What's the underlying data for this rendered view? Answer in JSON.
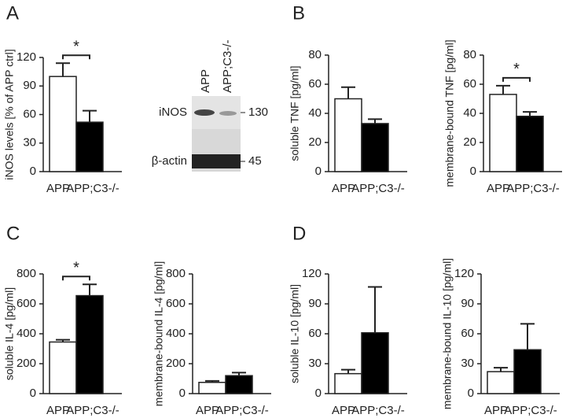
{
  "chart_data": [
    {
      "type": "bar",
      "panel": "A",
      "ylabel": "iNOS levels [% of APP ctrl]",
      "categories": [
        "APP",
        "APP;C3-/-"
      ],
      "values": [
        100,
        52
      ],
      "errors": [
        14,
        12
      ],
      "colors": [
        "#ffffff",
        "#000000"
      ],
      "ylim": [
        0,
        120
      ],
      "yticks": [
        0,
        30,
        60,
        90,
        120
      ],
      "annotation": "*"
    },
    {
      "type": "bar",
      "panel": "B",
      "ylabel": "soluble TNF [pg/ml]",
      "categories": [
        "APP",
        "APP;C3-/-"
      ],
      "values": [
        50,
        33
      ],
      "errors": [
        8,
        3
      ],
      "colors": [
        "#ffffff",
        "#000000"
      ],
      "ylim": [
        0,
        80
      ],
      "yticks": [
        0,
        20,
        40,
        60,
        80
      ]
    },
    {
      "type": "bar",
      "ylabel": "membrane-bound TNF [pg/ml]",
      "categories": [
        "APP",
        "APP;C3-/-"
      ],
      "values": [
        53,
        38
      ],
      "errors": [
        6,
        3
      ],
      "colors": [
        "#ffffff",
        "#000000"
      ],
      "ylim": [
        0,
        80
      ],
      "yticks": [
        0,
        20,
        40,
        60,
        80
      ],
      "annotation": "*"
    },
    {
      "type": "bar",
      "panel": "C",
      "ylabel": "soluble IL-4 [pg/ml]",
      "categories": [
        "APP",
        "APP;C3-/-"
      ],
      "values": [
        345,
        655
      ],
      "errors": [
        15,
        75
      ],
      "colors": [
        "#ffffff",
        "#000000"
      ],
      "ylim": [
        0,
        800
      ],
      "yticks": [
        0,
        200,
        400,
        600,
        800
      ],
      "annotation": "*"
    },
    {
      "type": "bar",
      "ylabel": "membrane-bound IL-4 [pg/ml]",
      "categories": [
        "APP",
        "APP;C3-/-"
      ],
      "values": [
        75,
        120
      ],
      "errors": [
        10,
        20
      ],
      "colors": [
        "#ffffff",
        "#000000"
      ],
      "ylim": [
        0,
        800
      ],
      "yticks": [
        0,
        200,
        400,
        600,
        800
      ]
    },
    {
      "type": "bar",
      "panel": "D",
      "ylabel": "soluble IL-10 [pg/ml]",
      "categories": [
        "APP",
        "APP;C3-/-"
      ],
      "values": [
        20,
        61
      ],
      "errors": [
        4,
        46
      ],
      "colors": [
        "#ffffff",
        "#000000"
      ],
      "ylim": [
        0,
        120
      ],
      "yticks": [
        0,
        30,
        60,
        90,
        120
      ]
    },
    {
      "type": "bar",
      "ylabel": "membrane-bound IL-10 [pg/ml]",
      "categories": [
        "APP",
        "APP;C3-/-"
      ],
      "values": [
        22,
        44
      ],
      "errors": [
        4,
        26
      ],
      "colors": [
        "#ffffff",
        "#000000"
      ],
      "ylim": [
        0,
        120
      ],
      "yticks": [
        0,
        30,
        60,
        90,
        120
      ]
    }
  ],
  "blot": {
    "lanes": [
      "APP",
      "APP;C3-/-"
    ],
    "rows": [
      "iNOS",
      "β-actin"
    ],
    "markers": [
      "130",
      "45"
    ]
  }
}
